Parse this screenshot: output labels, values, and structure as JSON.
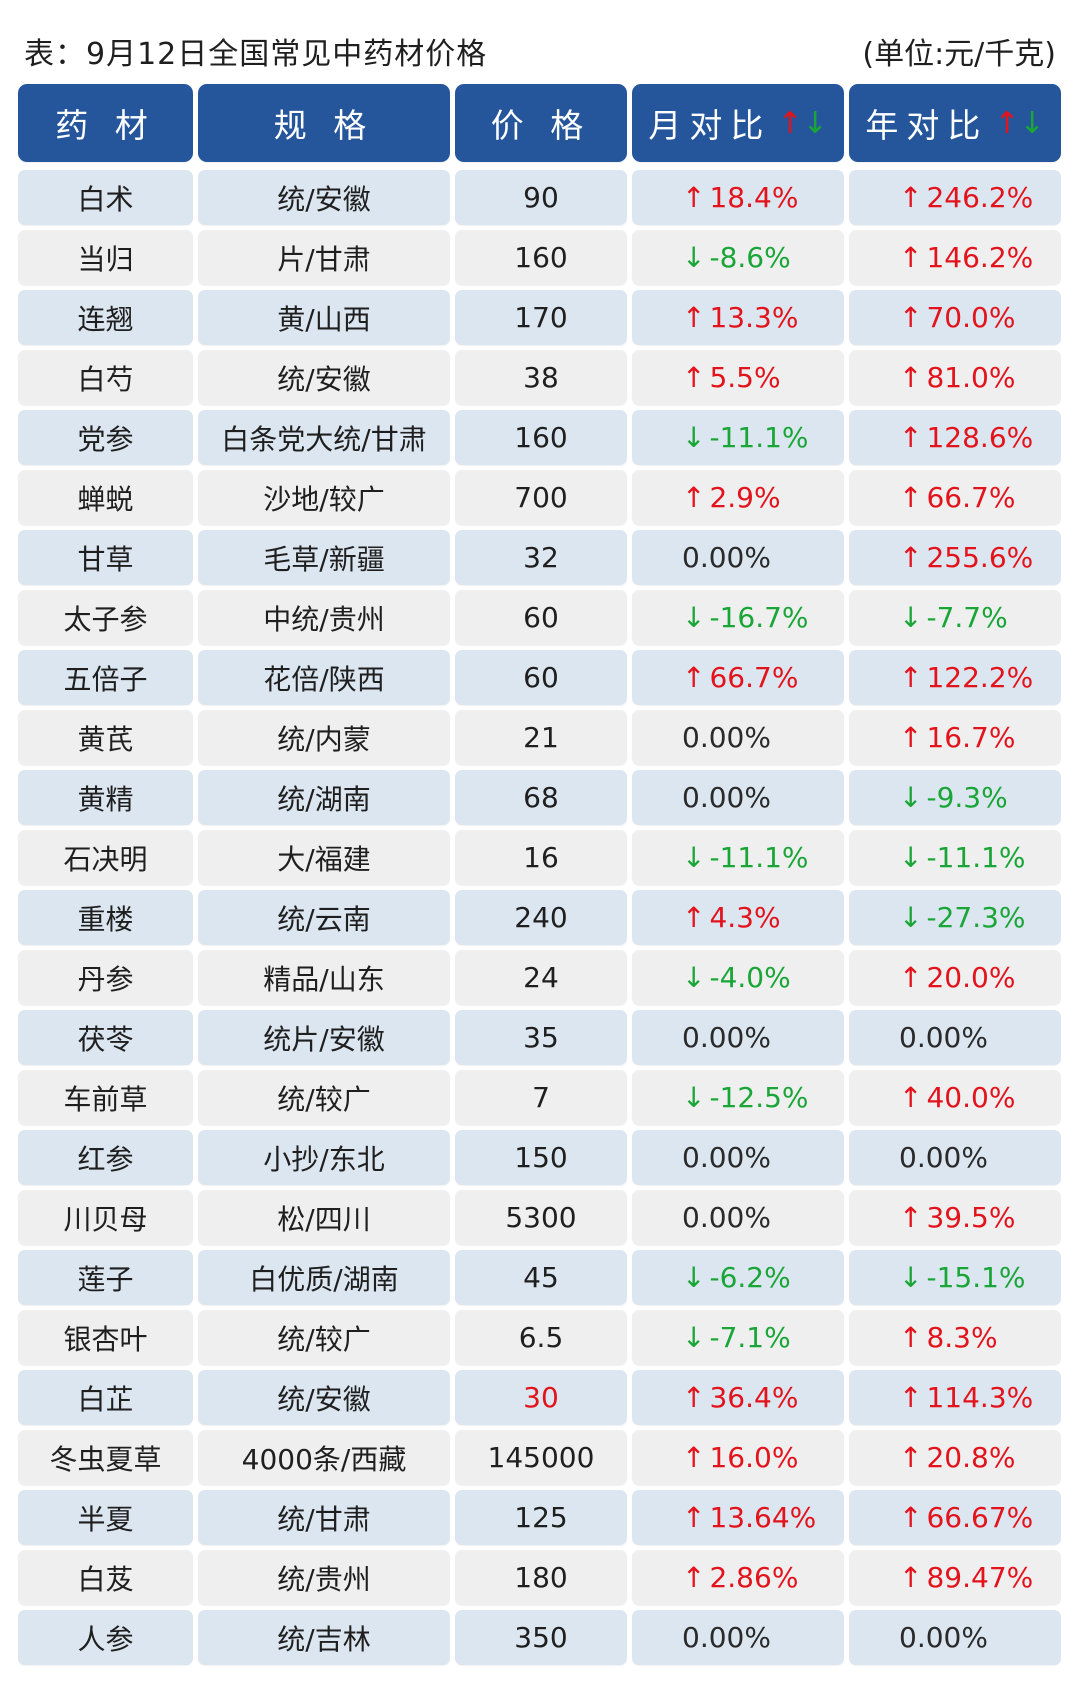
{
  "title": "表：9月12日全国常见中药材价格",
  "unit": "(单位:元/千克)",
  "headers": {
    "name": "药 材",
    "spec": "规 格",
    "price": "价 格",
    "month": "月对比",
    "year": "年对比"
  },
  "rows": [
    {
      "name": "白术",
      "spec": "统/安徽",
      "price": "90",
      "month": "18.4%",
      "month_dir": "up",
      "year": "246.2%",
      "year_dir": "up"
    },
    {
      "name": "当归",
      "spec": "片/甘肃",
      "price": "160",
      "month": "-8.6%",
      "month_dir": "down",
      "year": "146.2%",
      "year_dir": "up"
    },
    {
      "name": "连翘",
      "spec": "黄/山西",
      "price": "170",
      "month": "13.3%",
      "month_dir": "up",
      "year": "70.0%",
      "year_dir": "up"
    },
    {
      "name": "白芍",
      "spec": "统/安徽",
      "price": "38",
      "month": "5.5%",
      "month_dir": "up",
      "year": "81.0%",
      "year_dir": "up"
    },
    {
      "name": "党参",
      "spec": "白条党大统/甘肃",
      "price": "160",
      "month": "-11.1%",
      "month_dir": "down",
      "year": "128.6%",
      "year_dir": "up"
    },
    {
      "name": "蝉蜕",
      "spec": "沙地/较广",
      "price": "700",
      "month": "2.9%",
      "month_dir": "up",
      "year": "66.7%",
      "year_dir": "up"
    },
    {
      "name": "甘草",
      "spec": "毛草/新疆",
      "price": "32",
      "month": "0.00%",
      "month_dir": "flat",
      "year": "255.6%",
      "year_dir": "up"
    },
    {
      "name": "太子参",
      "spec": "中统/贵州",
      "price": "60",
      "month": "-16.7%",
      "month_dir": "down",
      "year": "-7.7%",
      "year_dir": "down"
    },
    {
      "name": "五倍子",
      "spec": "花倍/陕西",
      "price": "60",
      "month": "66.7%",
      "month_dir": "up",
      "year": "122.2%",
      "year_dir": "up"
    },
    {
      "name": "黄芪",
      "spec": "统/内蒙",
      "price": "21",
      "month": "0.00%",
      "month_dir": "flat",
      "year": "16.7%",
      "year_dir": "up"
    },
    {
      "name": "黄精",
      "spec": "统/湖南",
      "price": "68",
      "month": "0.00%",
      "month_dir": "flat",
      "year": "-9.3%",
      "year_dir": "down"
    },
    {
      "name": "石决明",
      "spec": "大/福建",
      "price": "16",
      "month": "-11.1%",
      "month_dir": "down",
      "year": "-11.1%",
      "year_dir": "down"
    },
    {
      "name": "重楼",
      "spec": "统/云南",
      "price": "240",
      "month": "4.3%",
      "month_dir": "up",
      "year": "-27.3%",
      "year_dir": "down"
    },
    {
      "name": "丹参",
      "spec": "精品/山东",
      "price": "24",
      "month": "-4.0%",
      "month_dir": "down",
      "year": "20.0%",
      "year_dir": "up"
    },
    {
      "name": "茯苓",
      "spec": "统片/安徽",
      "price": "35",
      "month": "0.00%",
      "month_dir": "flat",
      "year": "0.00%",
      "year_dir": "flat"
    },
    {
      "name": "车前草",
      "spec": "统/较广",
      "price": "7",
      "month": "-12.5%",
      "month_dir": "down",
      "year": "40.0%",
      "year_dir": "up"
    },
    {
      "name": "红参",
      "spec": "小抄/东北",
      "price": "150",
      "month": "0.00%",
      "month_dir": "flat",
      "year": "0.00%",
      "year_dir": "flat"
    },
    {
      "name": "川贝母",
      "spec": "松/四川",
      "price": "5300",
      "month": "0.00%",
      "month_dir": "flat",
      "year": "39.5%",
      "year_dir": "up"
    },
    {
      "name": "莲子",
      "spec": "白优质/湖南",
      "price": "45",
      "month": "-6.2%",
      "month_dir": "down",
      "year": "-15.1%",
      "year_dir": "down"
    },
    {
      "name": "银杏叶",
      "spec": "统/较广",
      "price": "6.5",
      "month": "-7.1%",
      "month_dir": "down",
      "year": "8.3%",
      "year_dir": "up"
    },
    {
      "name": "白芷",
      "spec": "统/安徽",
      "price": "30",
      "price_color": "red",
      "month": "36.4%",
      "month_dir": "up",
      "year": "114.3%",
      "year_dir": "up"
    },
    {
      "name": "冬虫夏草",
      "spec": "4000条/西藏",
      "price": "145000",
      "month": "16.0%",
      "month_dir": "up",
      "year": "20.8%",
      "year_dir": "up"
    },
    {
      "name": "半夏",
      "spec": "统/甘肃",
      "price": "125",
      "month": "13.64%",
      "month_dir": "up",
      "year": "66.67%",
      "year_dir": "up"
    },
    {
      "name": "白芨",
      "spec": "统/贵州",
      "price": "180",
      "month": "2.86%",
      "month_dir": "up",
      "year": "89.47%",
      "year_dir": "up"
    },
    {
      "name": "人参",
      "spec": "统/吉林",
      "price": "350",
      "month": "0.00%",
      "month_dir": "flat",
      "year": "0.00%",
      "year_dir": "flat"
    }
  ],
  "colors": {
    "header_bg": "#25569b",
    "row_blue": "#dce6f0",
    "row_gray": "#efefef",
    "up": "#e3131c",
    "down": "#19a637"
  }
}
